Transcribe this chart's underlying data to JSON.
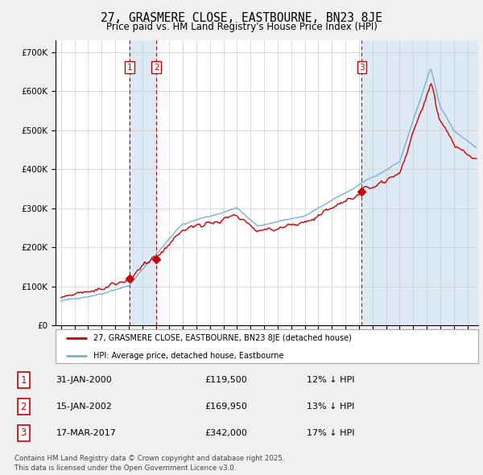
{
  "title": "27, GRASMERE CLOSE, EASTBOURNE, BN23 8JE",
  "subtitle": "Price paid vs. HM Land Registry's House Price Index (HPI)",
  "red_label": "27, GRASMERE CLOSE, EASTBOURNE, BN23 8JE (detached house)",
  "blue_label": "HPI: Average price, detached house, Eastbourne",
  "purchases": [
    {
      "num": 1,
      "date": "31-JAN-2000",
      "price": 119500,
      "pct": "12%",
      "x": 2000.08
    },
    {
      "num": 2,
      "date": "15-JAN-2002",
      "price": 169950,
      "pct": "13%",
      "x": 2002.04
    },
    {
      "num": 3,
      "date": "17-MAR-2017",
      "price": 342000,
      "pct": "17%",
      "x": 2017.21
    }
  ],
  "footnote1": "Contains HM Land Registry data © Crown copyright and database right 2025.",
  "footnote2": "This data is licensed under the Open Government Licence v3.0.",
  "ylim": [
    0,
    730000
  ],
  "xlim_start": 1994.6,
  "xlim_end": 2025.8,
  "background_color": "#f0f0f0",
  "plot_background": "#ffffff",
  "grid_color": "#cccccc",
  "red_color": "#cc0000",
  "blue_color": "#7ab0d4",
  "shade_color": "#ddeaf5"
}
